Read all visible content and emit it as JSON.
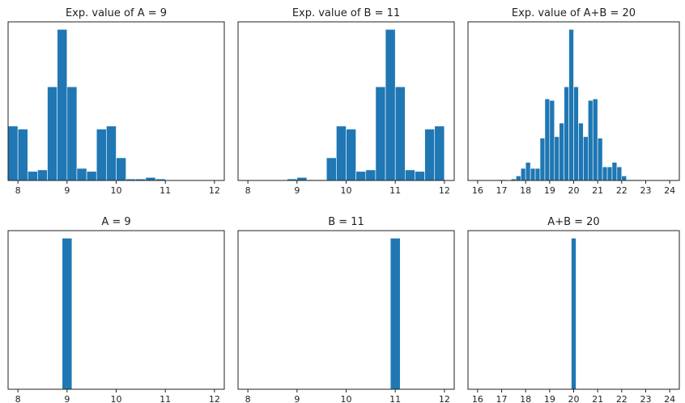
{
  "chart_data": [
    {
      "type": "bar",
      "title": "Exp. value of A = 9",
      "xlim": [
        7.8,
        12.2
      ],
      "xticks": [
        8,
        9,
        10,
        11,
        12
      ],
      "bin_width": 0.2,
      "bins": [
        {
          "x": 7.9,
          "v": 0.36
        },
        {
          "x": 8.1,
          "v": 0.34
        },
        {
          "x": 8.3,
          "v": 0.06
        },
        {
          "x": 8.5,
          "v": 0.07
        },
        {
          "x": 8.7,
          "v": 0.62
        },
        {
          "x": 8.9,
          "v": 1.0
        },
        {
          "x": 9.1,
          "v": 0.62
        },
        {
          "x": 9.3,
          "v": 0.08
        },
        {
          "x": 9.5,
          "v": 0.06
        },
        {
          "x": 9.7,
          "v": 0.34
        },
        {
          "x": 9.9,
          "v": 0.36
        },
        {
          "x": 10.1,
          "v": 0.15
        },
        {
          "x": 10.3,
          "v": 0.01
        },
        {
          "x": 10.5,
          "v": 0.01
        },
        {
          "x": 10.7,
          "v": 0.02
        },
        {
          "x": 10.9,
          "v": 0.01
        }
      ],
      "ylim": [
        0,
        1.05
      ],
      "color": "#1f77b4"
    },
    {
      "type": "bar",
      "title": "Exp. value of B = 11",
      "xlim": [
        7.8,
        12.2
      ],
      "xticks": [
        8,
        9,
        10,
        11,
        12
      ],
      "bin_width": 0.2,
      "bins": [
        {
          "x": 8.9,
          "v": 0.01
        },
        {
          "x": 9.1,
          "v": 0.02
        },
        {
          "x": 9.3,
          "v": 0.005
        },
        {
          "x": 9.5,
          "v": 0.005
        },
        {
          "x": 9.7,
          "v": 0.15
        },
        {
          "x": 9.9,
          "v": 0.36
        },
        {
          "x": 10.1,
          "v": 0.34
        },
        {
          "x": 10.3,
          "v": 0.06
        },
        {
          "x": 10.5,
          "v": 0.07
        },
        {
          "x": 10.7,
          "v": 0.62
        },
        {
          "x": 10.9,
          "v": 1.0
        },
        {
          "x": 11.1,
          "v": 0.62
        },
        {
          "x": 11.3,
          "v": 0.07
        },
        {
          "x": 11.5,
          "v": 0.06
        },
        {
          "x": 11.7,
          "v": 0.34
        },
        {
          "x": 11.9,
          "v": 0.36
        }
      ],
      "ylim": [
        0,
        1.05
      ],
      "color": "#1f77b4"
    },
    {
      "type": "bar",
      "title": "Exp. value of A+B = 20",
      "xlim": [
        15.6,
        24.4
      ],
      "xticks": [
        16,
        17,
        18,
        19,
        20,
        21,
        22,
        23,
        24
      ],
      "bin_width": 0.2,
      "bins": [
        {
          "x": 16.9,
          "v": 0.005
        },
        {
          "x": 17.1,
          "v": 0.005
        },
        {
          "x": 17.5,
          "v": 0.01
        },
        {
          "x": 17.7,
          "v": 0.03
        },
        {
          "x": 17.9,
          "v": 0.08
        },
        {
          "x": 18.1,
          "v": 0.12
        },
        {
          "x": 18.3,
          "v": 0.08
        },
        {
          "x": 18.5,
          "v": 0.08
        },
        {
          "x": 18.7,
          "v": 0.28
        },
        {
          "x": 18.9,
          "v": 0.54
        },
        {
          "x": 19.1,
          "v": 0.53
        },
        {
          "x": 19.3,
          "v": 0.29
        },
        {
          "x": 19.5,
          "v": 0.38
        },
        {
          "x": 19.7,
          "v": 0.62
        },
        {
          "x": 19.9,
          "v": 1.0
        },
        {
          "x": 20.1,
          "v": 0.62
        },
        {
          "x": 20.3,
          "v": 0.38
        },
        {
          "x": 20.5,
          "v": 0.29
        },
        {
          "x": 20.7,
          "v": 0.53
        },
        {
          "x": 20.9,
          "v": 0.54
        },
        {
          "x": 21.1,
          "v": 0.28
        },
        {
          "x": 21.3,
          "v": 0.09
        },
        {
          "x": 21.5,
          "v": 0.09
        },
        {
          "x": 21.7,
          "v": 0.12
        },
        {
          "x": 21.9,
          "v": 0.09
        },
        {
          "x": 22.1,
          "v": 0.03
        },
        {
          "x": 22.3,
          "v": 0.005
        },
        {
          "x": 22.5,
          "v": 0.005
        },
        {
          "x": 22.7,
          "v": 0.005
        }
      ],
      "ylim": [
        0,
        1.05
      ],
      "color": "#1f77b4"
    },
    {
      "type": "bar",
      "title": "A = 9",
      "xlim": [
        7.8,
        12.2
      ],
      "xticks": [
        8,
        9,
        10,
        11,
        12
      ],
      "bin_width": 0.2,
      "bins": [
        {
          "x": 9.0,
          "v": 1.0
        }
      ],
      "ylim": [
        0,
        1.05
      ],
      "color": "#1f77b4"
    },
    {
      "type": "bar",
      "title": "B = 11",
      "xlim": [
        7.8,
        12.2
      ],
      "xticks": [
        8,
        9,
        10,
        11,
        12
      ],
      "bin_width": 0.2,
      "bins": [
        {
          "x": 11.0,
          "v": 1.0
        }
      ],
      "ylim": [
        0,
        1.05
      ],
      "color": "#1f77b4"
    },
    {
      "type": "bar",
      "title": "A+B = 20",
      "xlim": [
        15.6,
        24.4
      ],
      "xticks": [
        16,
        17,
        18,
        19,
        20,
        21,
        22,
        23,
        24
      ],
      "bin_width": 0.2,
      "bins": [
        {
          "x": 20.0,
          "v": 1.0
        }
      ],
      "ylim": [
        0,
        1.05
      ],
      "color": "#1f77b4"
    }
  ]
}
